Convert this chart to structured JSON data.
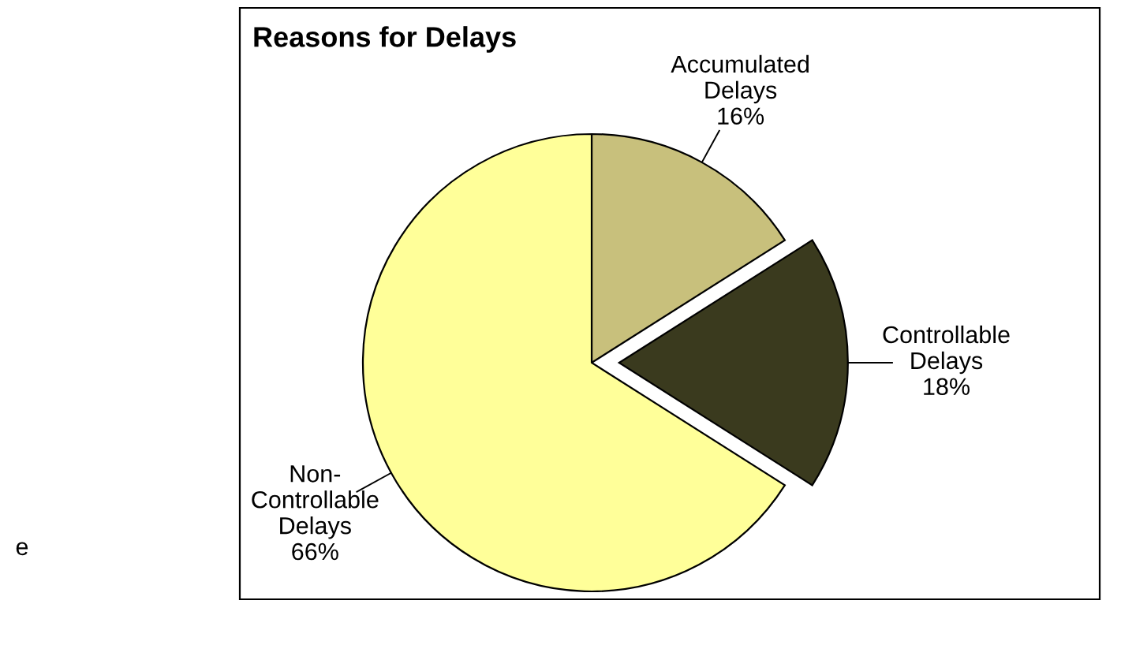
{
  "chart_data": {
    "type": "pie",
    "title": "Reasons for Delays",
    "categories": [
      "Accumulated\nDelays",
      "Controllable\nDelays",
      "Non-\nControllable\nDelays"
    ],
    "values": [
      16,
      18,
      66
    ],
    "value_labels": [
      "16%",
      "18%",
      "66%"
    ],
    "colors": [
      "#c8c07c",
      "#3a3a1e",
      "#ffff99"
    ],
    "annotations": [
      "e"
    ]
  }
}
